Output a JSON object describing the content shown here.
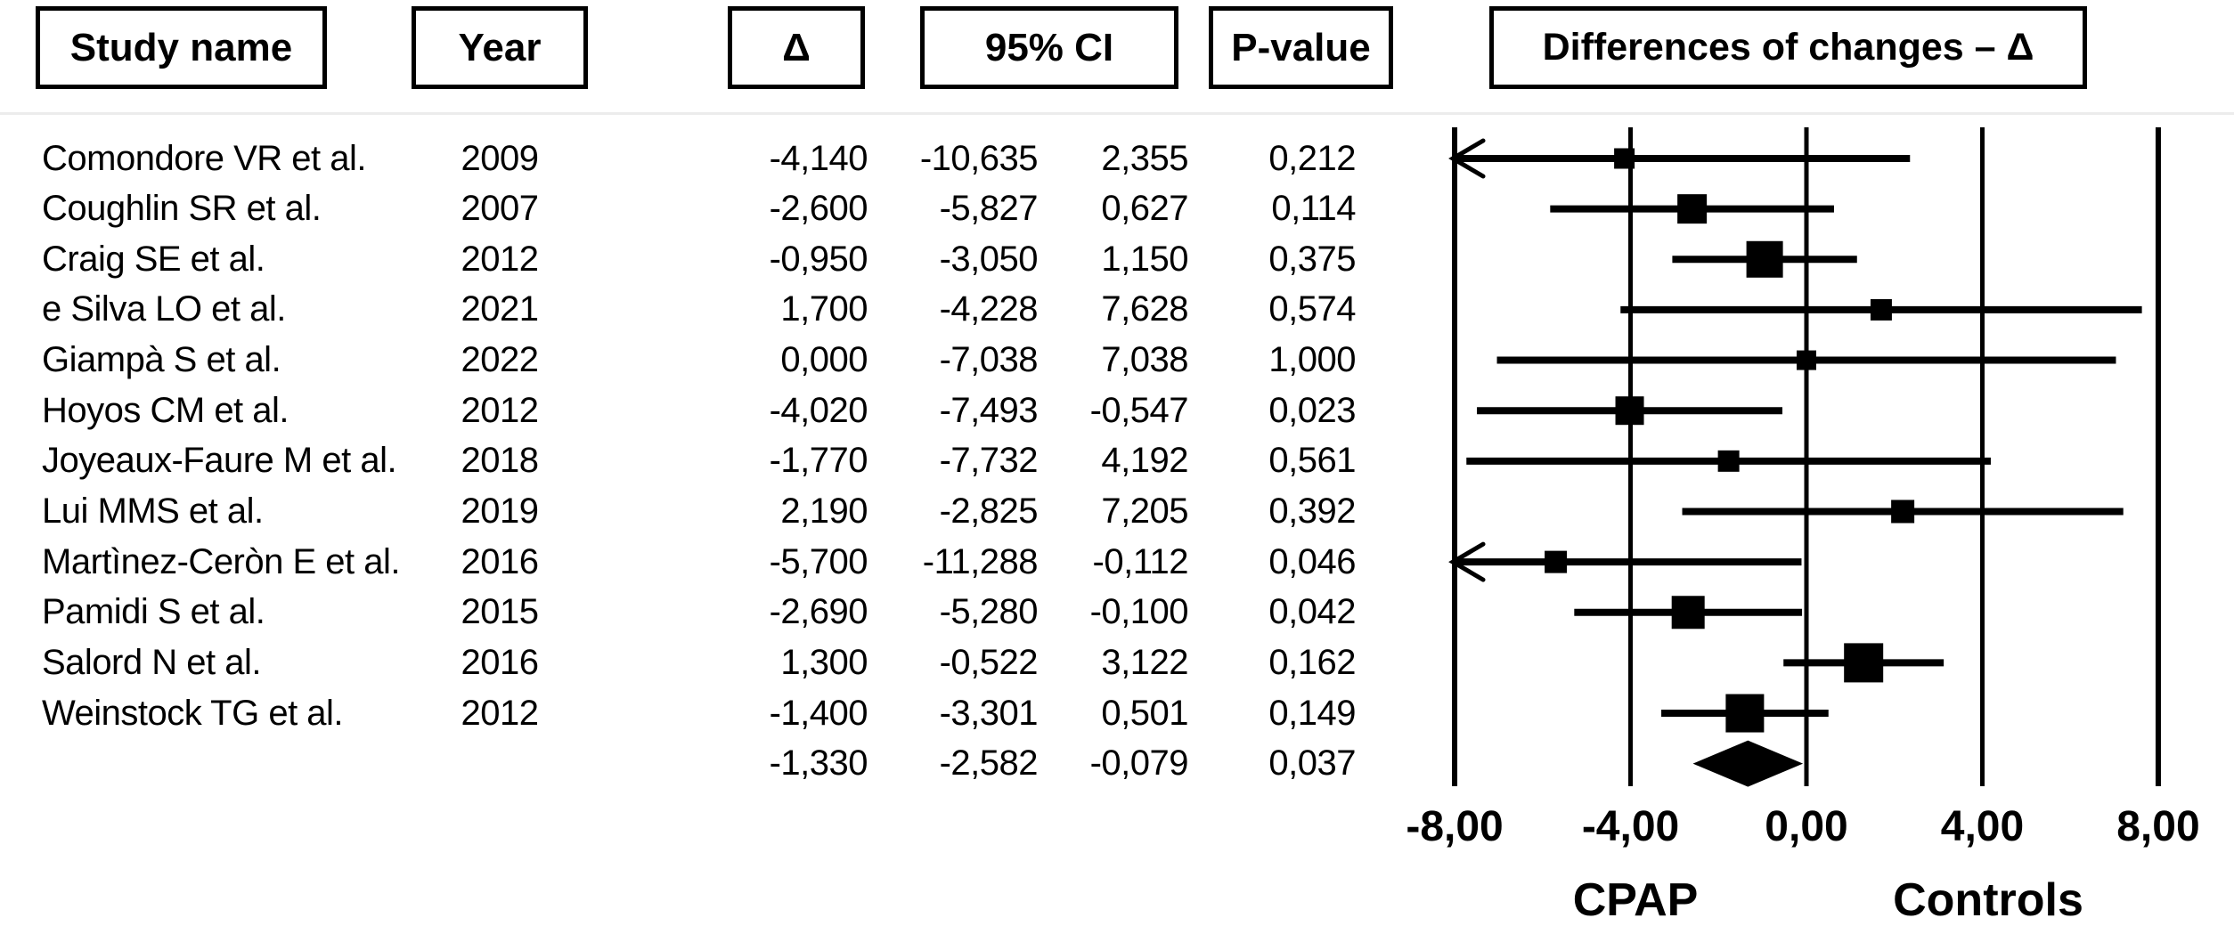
{
  "header": {
    "study_name": "Study name",
    "year": "Year",
    "delta": "Δ",
    "ci": "95% CI",
    "p_value": "P-value",
    "plot_title": "Differences of changes – Δ"
  },
  "studies": [
    {
      "name": "Comondore VR et al.",
      "year": "2009",
      "delta": "-4,140",
      "ci_lower": "-10,635",
      "ci_upper": "2,355",
      "p_value": "0,212"
    },
    {
      "name": "Coughlin SR et al.",
      "year": "2007",
      "delta": "-2,600",
      "ci_lower": "-5,827",
      "ci_upper": "0,627",
      "p_value": "0,114"
    },
    {
      "name": "Craig SE et al.",
      "year": "2012",
      "delta": "-0,950",
      "ci_lower": "-3,050",
      "ci_upper": "1,150",
      "p_value": "0,375"
    },
    {
      "name": "e Silva LO et al.",
      "year": "2021",
      "delta": "1,700",
      "ci_lower": "-4,228",
      "ci_upper": "7,628",
      "p_value": "0,574"
    },
    {
      "name": "Giampà S et al.",
      "year": "2022",
      "delta": "0,000",
      "ci_lower": "-7,038",
      "ci_upper": "7,038",
      "p_value": "1,000"
    },
    {
      "name": "Hoyos CM et al.",
      "year": "2012",
      "delta": "-4,020",
      "ci_lower": "-7,493",
      "ci_upper": "-0,547",
      "p_value": "0,023"
    },
    {
      "name": "Joyeaux-Faure M et al.",
      "year": "2018",
      "delta": "-1,770",
      "ci_lower": "-7,732",
      "ci_upper": "4,192",
      "p_value": "0,561"
    },
    {
      "name": "Lui MMS et al.",
      "year": "2019",
      "delta": "2,190",
      "ci_lower": "-2,825",
      "ci_upper": "7,205",
      "p_value": "0,392"
    },
    {
      "name": "Martìnez-Ceròn E et al.",
      "year": "2016",
      "delta": "-5,700",
      "ci_lower": "-11,288",
      "ci_upper": "-0,112",
      "p_value": "0,046"
    },
    {
      "name": "Pamidi S et al.",
      "year": "2015",
      "delta": "-2,690",
      "ci_lower": "-5,280",
      "ci_upper": "-0,100",
      "p_value": "0,042"
    },
    {
      "name": "Salord N et al.",
      "year": "2016",
      "delta": "1,300",
      "ci_lower": "-0,522",
      "ci_upper": "3,122",
      "p_value": "0,162"
    },
    {
      "name": "Weinstock TG et al.",
      "year": "2012",
      "delta": "-1,400",
      "ci_lower": "-3,301",
      "ci_upper": "0,501",
      "p_value": "0,149"
    }
  ],
  "summary": {
    "delta": "-1,330",
    "ci_lower": "-2,582",
    "ci_upper": "-0,079",
    "p_value": "0,037"
  },
  "chart_data": {
    "type": "forest",
    "title": "Differences of changes – Δ",
    "xlabel": "",
    "xlim": [
      -8,
      8
    ],
    "x_ticks": [
      -8,
      -4,
      0,
      4,
      8
    ],
    "x_tick_labels": [
      "-8,00",
      "-4,00",
      "0,00",
      "4,00",
      "8,00"
    ],
    "left_group_label": "CPAP",
    "right_group_label": "Controls",
    "grid": true,
    "legend_position": "none",
    "points": [
      {
        "study": "Comondore VR et al.",
        "value": -4.14,
        "lo": -10.635,
        "hi": 2.355,
        "size": 23
      },
      {
        "study": "Coughlin SR et al.",
        "value": -2.6,
        "lo": -5.827,
        "hi": 0.627,
        "size": 33
      },
      {
        "study": "Craig SE et al.",
        "value": -0.95,
        "lo": -3.05,
        "hi": 1.15,
        "size": 41
      },
      {
        "study": "e Silva LO et al.",
        "value": 1.7,
        "lo": -4.228,
        "hi": 7.628,
        "size": 24
      },
      {
        "study": "Giampà S et al.",
        "value": 0.0,
        "lo": -7.038,
        "hi": 7.038,
        "size": 22
      },
      {
        "study": "Hoyos CM et al.",
        "value": -4.02,
        "lo": -7.493,
        "hi": -0.547,
        "size": 32
      },
      {
        "study": "Joyeaux-Faure M et al.",
        "value": -1.77,
        "lo": -7.732,
        "hi": 4.192,
        "size": 24
      },
      {
        "study": "Lui MMS et al.",
        "value": 2.19,
        "lo": -2.825,
        "hi": 7.205,
        "size": 26
      },
      {
        "study": "Martìnez-Ceròn E et al.",
        "value": -5.7,
        "lo": -11.288,
        "hi": -0.112,
        "size": 25
      },
      {
        "study": "Pamidi S et al.",
        "value": -2.69,
        "lo": -5.28,
        "hi": -0.1,
        "size": 37
      },
      {
        "study": "Salord N et al.",
        "value": 1.3,
        "lo": -0.522,
        "hi": 3.122,
        "size": 44
      },
      {
        "study": "Weinstock TG et al.",
        "value": -1.4,
        "lo": -3.301,
        "hi": 0.501,
        "size": 43
      }
    ],
    "summary": {
      "value": -1.33,
      "lo": -2.582,
      "hi": -0.079
    }
  }
}
